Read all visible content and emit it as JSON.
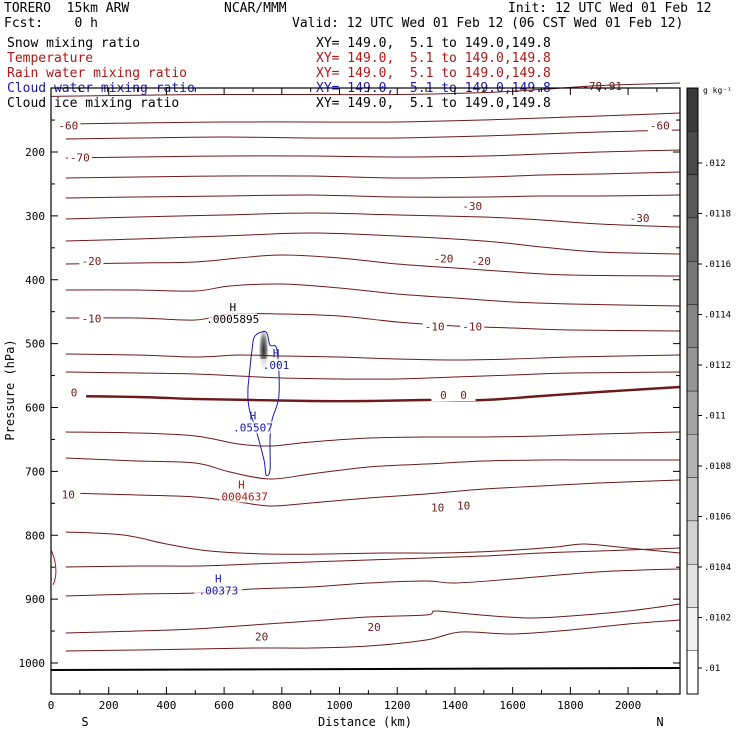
{
  "header": {
    "model": "TORERO  15km ARW",
    "forecast": "Fcst:    0 h",
    "center": "NCAR/MMM",
    "init": "Init: 12 UTC Wed 01 Feb 12",
    "valid": "Valid: 12 UTC Wed 01 Feb 12 (06 CST Wed 01 Feb 12)"
  },
  "fields": [
    {
      "name": "Snow mixing ratio",
      "xy": "XY= 149.0,  5.1 to 149.0,149.8",
      "color": "#000000"
    },
    {
      "name": "Temperature",
      "xy": "XY= 149.0,  5.1 to 149.0,149.8",
      "color": "#b01818"
    },
    {
      "name": "Rain water mixing ratio",
      "xy": "XY= 149.0,  5.1 to 149.0,149.8",
      "color": "#b01818"
    },
    {
      "name": "Cloud water mixing ratio",
      "xy": "XY= 149.0,  5.1 to 149.0,149.8",
      "color": "#1a1aa8"
    },
    {
      "name": "Cloud ice mixing ratio",
      "xy": "XY= 149.0,  5.1 to 149.0,149.8",
      "color": "#000000"
    }
  ],
  "chart_data": {
    "type": "contour",
    "xlabel": "Distance (km)",
    "ylabel": "Pressure (hPa)",
    "xlim": [
      0,
      2180
    ],
    "ylim": [
      1050,
      90
    ],
    "x_ticks": [
      0,
      200,
      400,
      600,
      800,
      1000,
      1200,
      1400,
      1600,
      1800,
      2000
    ],
    "y_ticks": [
      200,
      300,
      400,
      500,
      600,
      700,
      800,
      900,
      1000
    ],
    "x_end_labels": {
      "left": "S",
      "right": "N"
    },
    "colorbar": {
      "unit": "g kg⁻¹",
      "ticks": [
        ".012",
        ".0118",
        ".0116",
        ".0114",
        ".0112",
        ".011",
        ".0108",
        ".0106",
        ".0104",
        ".0102",
        ".01"
      ]
    },
    "temperature_contours": [
      {
        "level": -78.91,
        "label": "-78.91",
        "color": "#6e1a1a",
        "points": [
          [
            0,
            113
          ],
          [
            300,
            111
          ],
          [
            600,
            110
          ],
          [
            900,
            110
          ],
          [
            1200,
            110
          ],
          [
            1500,
            107
          ],
          [
            1700,
            102
          ],
          [
            1900,
            96
          ],
          [
            2180,
            92
          ]
        ]
      }
    ],
    "temperature_labels": [
      {
        "text": "-70",
        "x": 100,
        "p": 210
      },
      {
        "text": "-60",
        "x": 60,
        "p": 160
      },
      {
        "text": "-60",
        "x": 2110,
        "p": 160
      },
      {
        "text": "-30",
        "x": 1460,
        "p": 286
      },
      {
        "text": "-30",
        "x": 2040,
        "p": 305
      },
      {
        "text": "-20",
        "x": 140,
        "p": 372
      },
      {
        "text": "-20",
        "x": 1360,
        "p": 368
      },
      {
        "text": "-20",
        "x": 1490,
        "p": 372
      },
      {
        "text": "-10",
        "x": 140,
        "p": 462
      },
      {
        "text": "-10",
        "x": 1330,
        "p": 475
      },
      {
        "text": "-10",
        "x": 1460,
        "p": 475
      },
      {
        "text": "0",
        "x": 80,
        "p": 578
      },
      {
        "text": "0",
        "x": 1360,
        "p": 582
      },
      {
        "text": "0",
        "x": 1430,
        "p": 582
      },
      {
        "text": "10",
        "x": 60,
        "p": 738
      },
      {
        "text": "10",
        "x": 1340,
        "p": 758
      },
      {
        "text": "10",
        "x": 1430,
        "p": 755
      },
      {
        "text": "20",
        "x": 730,
        "p": 960
      },
      {
        "text": "20",
        "x": 1120,
        "p": 945
      }
    ],
    "extrema": [
      {
        "label": "H",
        "value": ".0005895",
        "field": "Snow mixing ratio",
        "x": 630,
        "p": 455,
        "color": "#000000"
      },
      {
        "label": "H",
        "value": ".001",
        "field": "Cloud ice mixing ratio",
        "x": 780,
        "p": 527,
        "color": "#1a1aa8"
      },
      {
        "label": "H",
        "value": ".05507",
        "field": "Cloud water mixing ratio",
        "x": 700,
        "p": 625,
        "color": "#1a1aa8"
      },
      {
        "label": "H",
        "value": ".0004637",
        "field": "Rain water mixing ratio",
        "x": 660,
        "p": 733,
        "color": "#b01818"
      },
      {
        "label": "H",
        "value": ".00373",
        "field": "Cloud water mixing ratio",
        "x": 580,
        "p": 880,
        "color": "#1a1aa8"
      }
    ]
  }
}
